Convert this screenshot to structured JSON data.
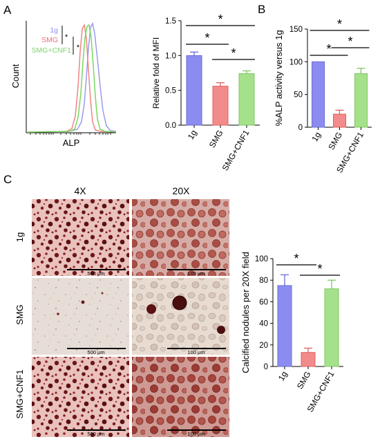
{
  "panels": {
    "A": {
      "letter": "A"
    },
    "B": {
      "letter": "B"
    },
    "C": {
      "letter": "C"
    }
  },
  "colors": {
    "g1": "#8c8cf0",
    "smg": "#f28b8b",
    "cnf1": "#a5e08a",
    "g1_hist": "#9a9aee",
    "smg_hist": "#f08484",
    "cnf1_hist": "#78d85a"
  },
  "flow": {
    "ylabel": "Count",
    "xlabel": "ALP",
    "legend": [
      {
        "label": "1g",
        "color": "#8c8cf0"
      },
      {
        "label": "SMG",
        "color": "#ef6b7a"
      },
      {
        "label": "SMG+CNF1",
        "color": "#7ed36a"
      }
    ],
    "sig": [
      "*",
      "*"
    ]
  },
  "micro": {
    "col_labels": [
      "4X",
      "20X"
    ],
    "row_labels": [
      "1g",
      "SMG",
      "SMG+CNF1"
    ],
    "scale_4x": "500 µm",
    "scale_20x": "100 µm"
  },
  "chart_data": [
    {
      "id": "mfi",
      "type": "bar",
      "categories": [
        "1g",
        "SMG",
        "SMG+CNF1"
      ],
      "values": [
        1.0,
        0.56,
        0.74
      ],
      "errors": [
        0.05,
        0.05,
        0.04
      ],
      "ylabel": "Relative fold of MFI",
      "ylim": [
        0,
        1.5
      ],
      "yticks": [
        "0.0",
        "0.5",
        "1.0",
        "1.5"
      ],
      "significance": [
        {
          "from": 0,
          "to": 1,
          "label": "*"
        },
        {
          "from": 1,
          "to": 2,
          "label": "*"
        },
        {
          "from": 0,
          "to": 2,
          "label": "*"
        }
      ]
    },
    {
      "id": "alp",
      "type": "bar",
      "categories": [
        "1g",
        "SMG",
        "SMG+CNF1"
      ],
      "values": [
        100,
        20,
        82
      ],
      "errors": [
        0,
        6,
        8
      ],
      "ylabel": "%ALP activity versus 1g",
      "ylim": [
        0,
        150
      ],
      "yticks": [
        "0",
        "50",
        "100",
        "150"
      ],
      "significance": [
        {
          "from": 0,
          "to": 1,
          "label": "*"
        },
        {
          "from": 1,
          "to": 2,
          "label": "*"
        },
        {
          "from": 0,
          "to": 2,
          "label": "*"
        }
      ]
    },
    {
      "id": "nodules",
      "type": "bar",
      "categories": [
        "1g",
        "SMG",
        "SMG+CNF1"
      ],
      "values": [
        75,
        13,
        72
      ],
      "errors": [
        10,
        4,
        8
      ],
      "ylabel": "Calcified nodules per 20X field",
      "ylim": [
        0,
        100
      ],
      "yticks": [
        "0",
        "20",
        "40",
        "60",
        "80",
        "100"
      ],
      "significance": [
        {
          "from": 0,
          "to": 1,
          "label": "*"
        },
        {
          "from": 1,
          "to": 2,
          "label": "*"
        }
      ]
    }
  ]
}
